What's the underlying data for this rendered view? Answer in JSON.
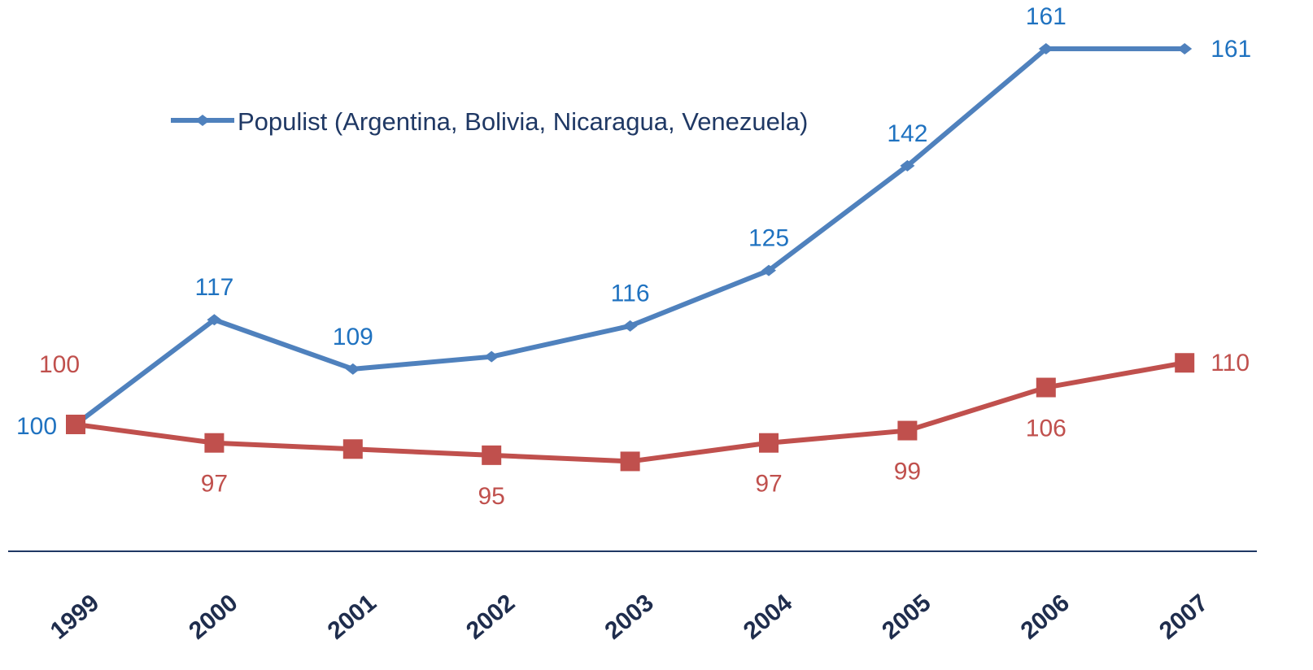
{
  "chart_data": {
    "type": "line",
    "categories": [
      "1999",
      "2000",
      "2001",
      "2002",
      "2003",
      "2004",
      "2005",
      "2006",
      "2007"
    ],
    "series": [
      {
        "name": "Populist (Argentina, Bolivia, Nicaragua, Venezuela)",
        "color": "#4f81bd",
        "label_color": "#1f72c0",
        "marker": "diamond",
        "values": [
          100,
          117,
          109,
          111,
          116,
          125,
          142,
          161,
          161
        ],
        "value_labels": [
          "100",
          "117",
          "109",
          null,
          "116",
          "125",
          "142",
          "161",
          "161"
        ]
      },
      {
        "color": "#c0504d",
        "label_color": "#c0504d",
        "marker": "square",
        "values": [
          100,
          97,
          96,
          95,
          94,
          97,
          99,
          106,
          110
        ],
        "value_labels": [
          "100",
          "97",
          null,
          "95",
          null,
          "97",
          "99",
          "106",
          "110"
        ]
      }
    ],
    "ylim": [
      79.4,
      168
    ],
    "legend": "upper left"
  }
}
